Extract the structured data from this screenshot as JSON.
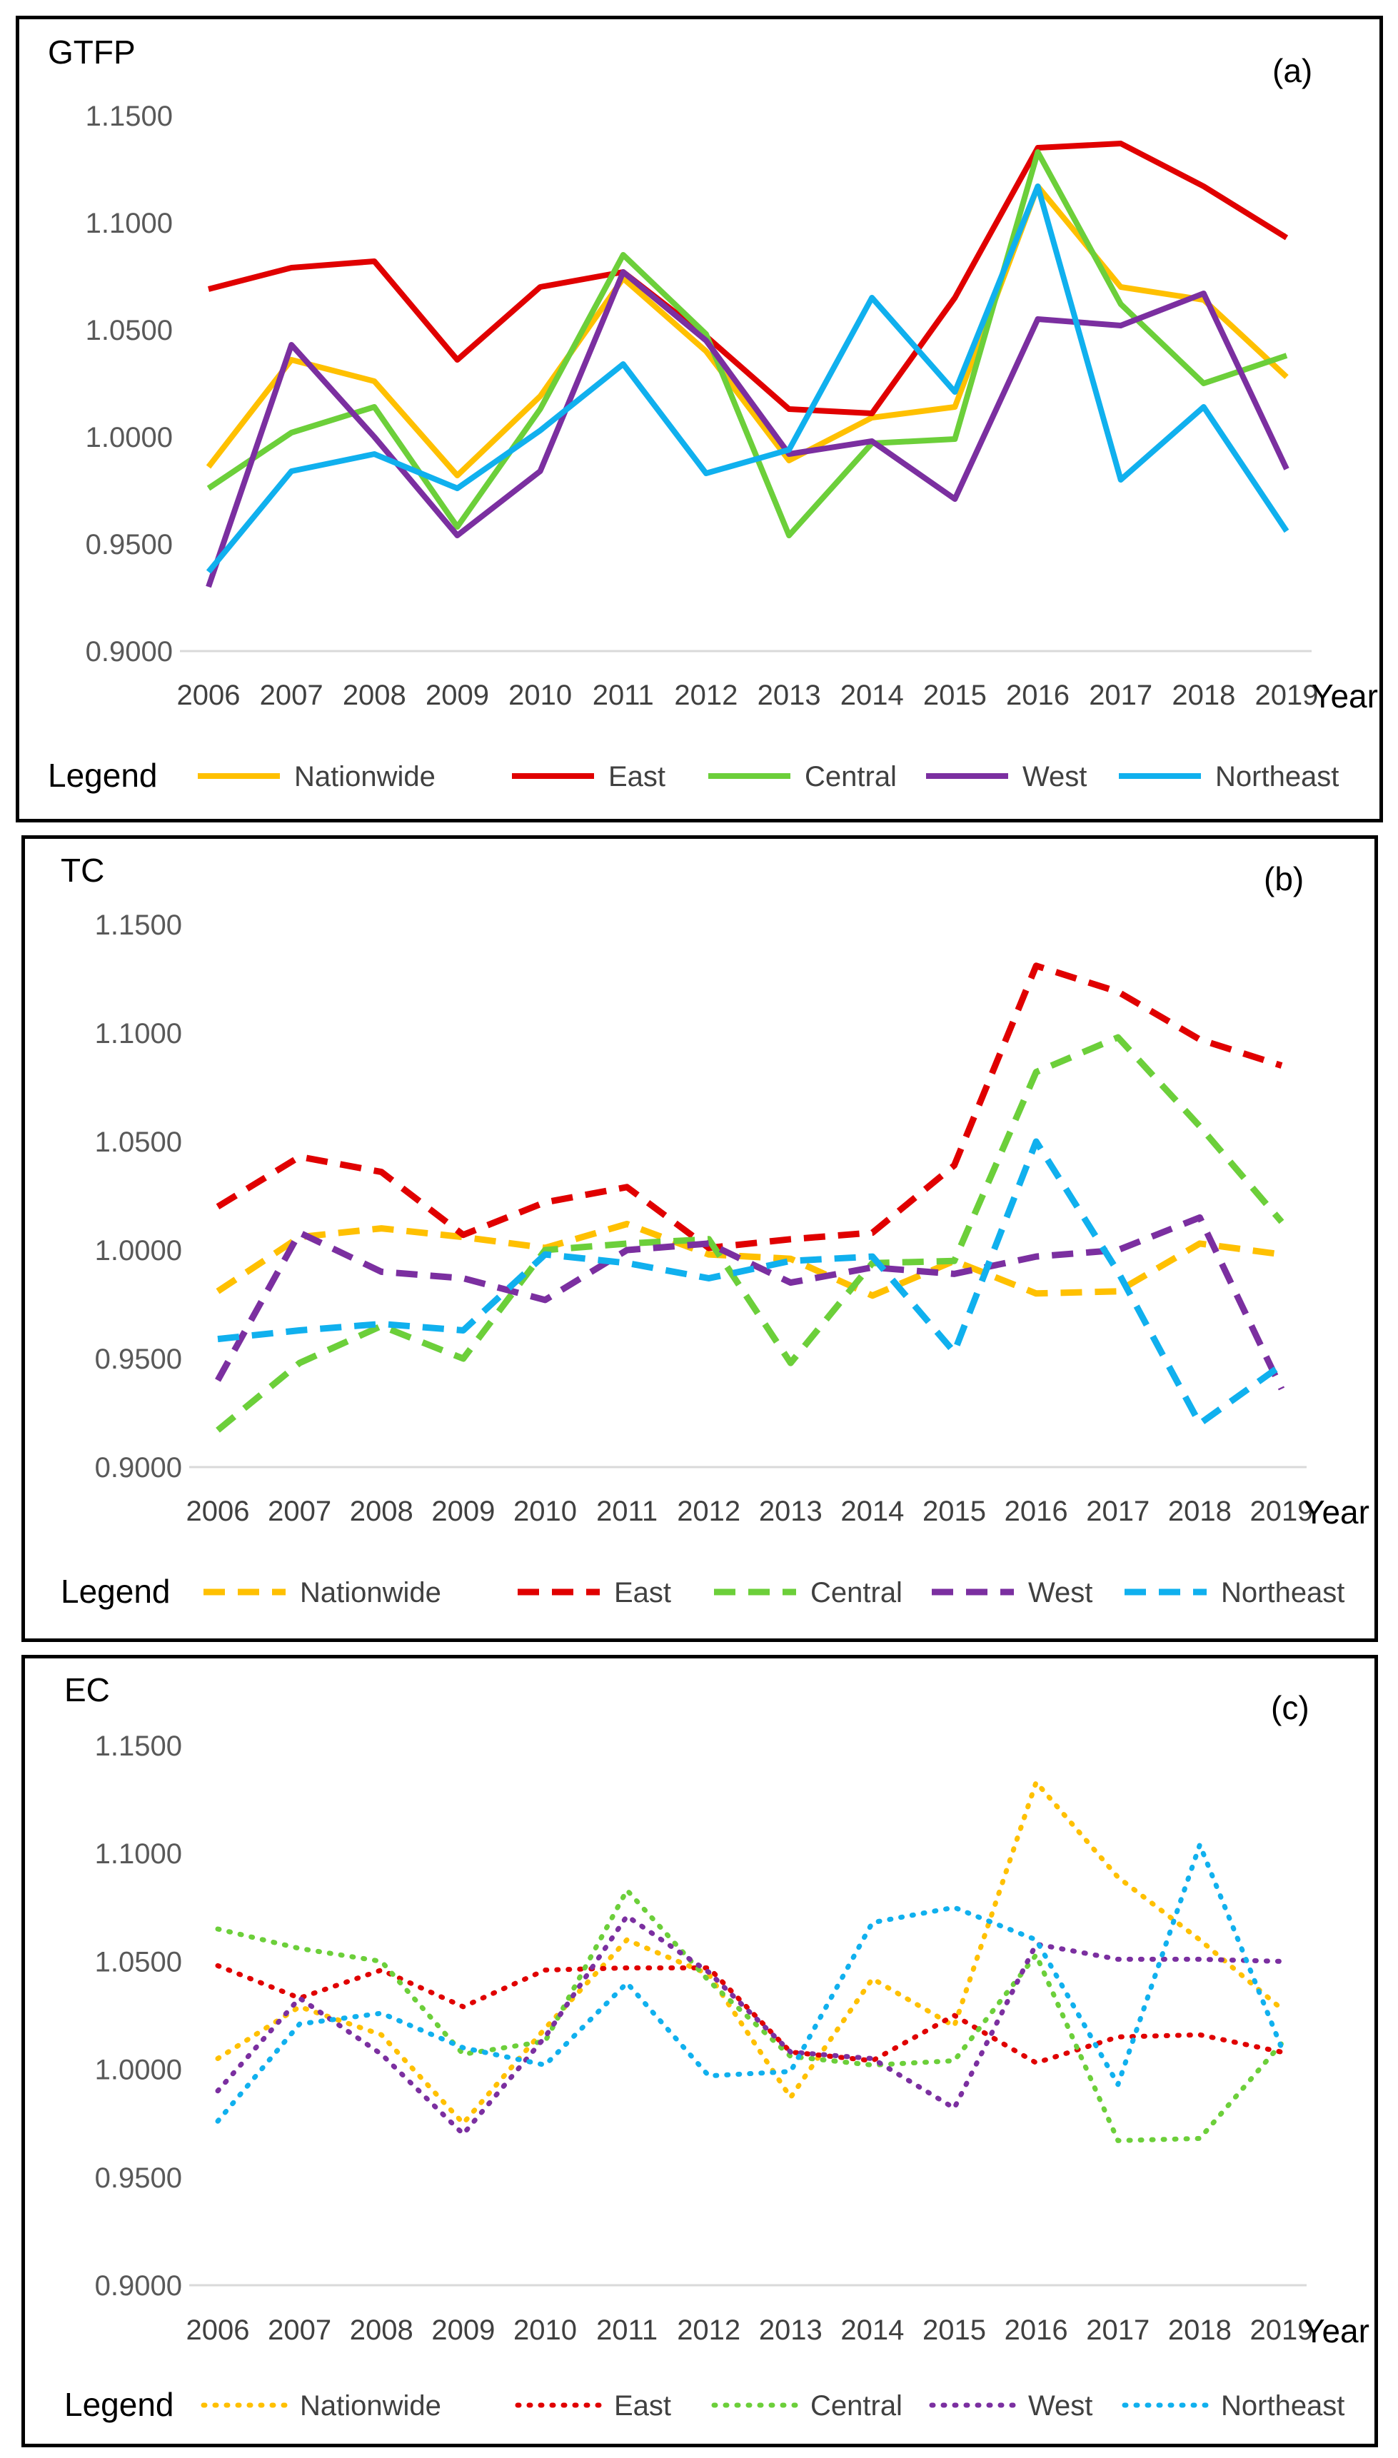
{
  "figure": {
    "colors": {
      "Nationwide": "#FFC000",
      "East": "#E00000",
      "Central": "#6CCF3A",
      "West": "#7B2FA0",
      "Northeast": "#10B0EE"
    },
    "legend_title": "Legend",
    "year_label": "Year"
  },
  "chart_data": [
    {
      "type": "line",
      "panel_label": "(a)",
      "title": "GTFP",
      "line_style": "solid",
      "xlabel": "Year",
      "ylabel": "",
      "ylim": [
        0.9,
        1.15
      ],
      "y_ticks": [
        "0.9000",
        "0.9500",
        "1.0000",
        "1.0500",
        "1.1000",
        "1.1500"
      ],
      "categories": [
        "2006",
        "2007",
        "2008",
        "2009",
        "2010",
        "2011",
        "2012",
        "2013",
        "2014",
        "2015",
        "2016",
        "2017",
        "2018",
        "2019"
      ],
      "series": [
        {
          "name": "Nationwide",
          "values": [
            0.986,
            1.036,
            1.026,
            0.982,
            1.019,
            1.074,
            1.04,
            0.989,
            1.009,
            1.014,
            1.117,
            1.07,
            1.064,
            1.028
          ]
        },
        {
          "name": "East",
          "values": [
            1.069,
            1.079,
            1.082,
            1.036,
            1.07,
            1.077,
            1.047,
            1.013,
            1.011,
            1.065,
            1.135,
            1.137,
            1.117,
            1.093
          ]
        },
        {
          "name": "Central",
          "values": [
            0.976,
            1.002,
            1.014,
            0.958,
            1.013,
            1.085,
            1.048,
            0.954,
            0.997,
            0.999,
            1.133,
            1.062,
            1.025,
            1.038
          ]
        },
        {
          "name": "West",
          "values": [
            0.93,
            1.043,
            1.0,
            0.954,
            0.984,
            1.077,
            1.045,
            0.992,
            0.998,
            0.971,
            1.055,
            1.052,
            1.067,
            0.985
          ]
        },
        {
          "name": "Northeast",
          "values": [
            0.937,
            0.984,
            0.992,
            0.976,
            1.003,
            1.034,
            0.983,
            0.994,
            1.065,
            1.021,
            1.117,
            0.98,
            1.014,
            0.956
          ]
        }
      ]
    },
    {
      "type": "line",
      "panel_label": "(b)",
      "title": "TC",
      "line_style": "dashed",
      "xlabel": "Year",
      "ylabel": "",
      "ylim": [
        0.9,
        1.15
      ],
      "y_ticks": [
        "0.9000",
        "0.9500",
        "1.0000",
        "1.0500",
        "1.1000",
        "1.1500"
      ],
      "categories": [
        "2006",
        "2007",
        "2008",
        "2009",
        "2010",
        "2011",
        "2012",
        "2013",
        "2014",
        "2015",
        "2016",
        "2017",
        "2018",
        "2019"
      ],
      "series": [
        {
          "name": "Nationwide",
          "values": [
            0.981,
            1.006,
            1.01,
            1.006,
            1.001,
            1.012,
            0.998,
            0.996,
            0.979,
            0.995,
            0.98,
            0.981,
            1.003,
            0.998
          ]
        },
        {
          "name": "East",
          "values": [
            1.02,
            1.043,
            1.036,
            1.007,
            1.022,
            1.029,
            1.001,
            1.005,
            1.008,
            1.039,
            1.131,
            1.119,
            1.097,
            1.085
          ]
        },
        {
          "name": "Central",
          "values": [
            0.917,
            0.948,
            0.965,
            0.95,
            1.0,
            1.003,
            1.005,
            0.948,
            0.994,
            0.995,
            1.082,
            1.098,
            1.057,
            1.013
          ]
        },
        {
          "name": "West",
          "values": [
            0.94,
            1.008,
            0.99,
            0.987,
            0.977,
            1.0,
            1.003,
            0.985,
            0.992,
            0.989,
            0.997,
            1.0,
            1.015,
            0.936
          ]
        },
        {
          "name": "Northeast",
          "values": [
            0.959,
            0.963,
            0.966,
            0.963,
            0.998,
            0.994,
            0.987,
            0.995,
            0.997,
            0.953,
            1.05,
            0.99,
            0.92,
            0.947
          ]
        }
      ]
    },
    {
      "type": "line",
      "panel_label": "(c)",
      "title": "EC",
      "line_style": "dotted",
      "xlabel": "Year",
      "ylabel": "",
      "ylim": [
        0.9,
        1.15
      ],
      "y_ticks": [
        "0.9000",
        "0.9500",
        "1.0000",
        "1.0500",
        "1.1000",
        "1.1500"
      ],
      "categories": [
        "2006",
        "2007",
        "2008",
        "2009",
        "2010",
        "2011",
        "2012",
        "2013",
        "2014",
        "2015",
        "2016",
        "2017",
        "2018",
        "2019"
      ],
      "series": [
        {
          "name": "Nationwide",
          "values": [
            1.005,
            1.029,
            1.016,
            0.975,
            1.019,
            1.06,
            1.044,
            0.987,
            1.042,
            1.02,
            1.133,
            1.089,
            1.06,
            1.028
          ]
        },
        {
          "name": "East",
          "values": [
            1.048,
            1.033,
            1.046,
            1.029,
            1.046,
            1.047,
            1.047,
            1.008,
            1.004,
            1.025,
            1.003,
            1.015,
            1.016,
            1.008
          ]
        },
        {
          "name": "Central",
          "values": [
            1.065,
            1.056,
            1.05,
            1.007,
            1.013,
            1.083,
            1.041,
            1.006,
            1.002,
            1.004,
            1.053,
            0.967,
            0.968,
            1.012
          ]
        },
        {
          "name": "West",
          "values": [
            0.99,
            1.033,
            1.007,
            0.97,
            1.015,
            1.071,
            1.045,
            1.008,
            1.005,
            0.982,
            1.058,
            1.051,
            1.051,
            1.05
          ]
        },
        {
          "name": "Northeast",
          "values": [
            0.976,
            1.021,
            1.026,
            1.01,
            1.002,
            1.04,
            0.997,
            0.999,
            1.068,
            1.075,
            1.06,
            0.993,
            1.104,
            1.01
          ]
        }
      ]
    }
  ]
}
